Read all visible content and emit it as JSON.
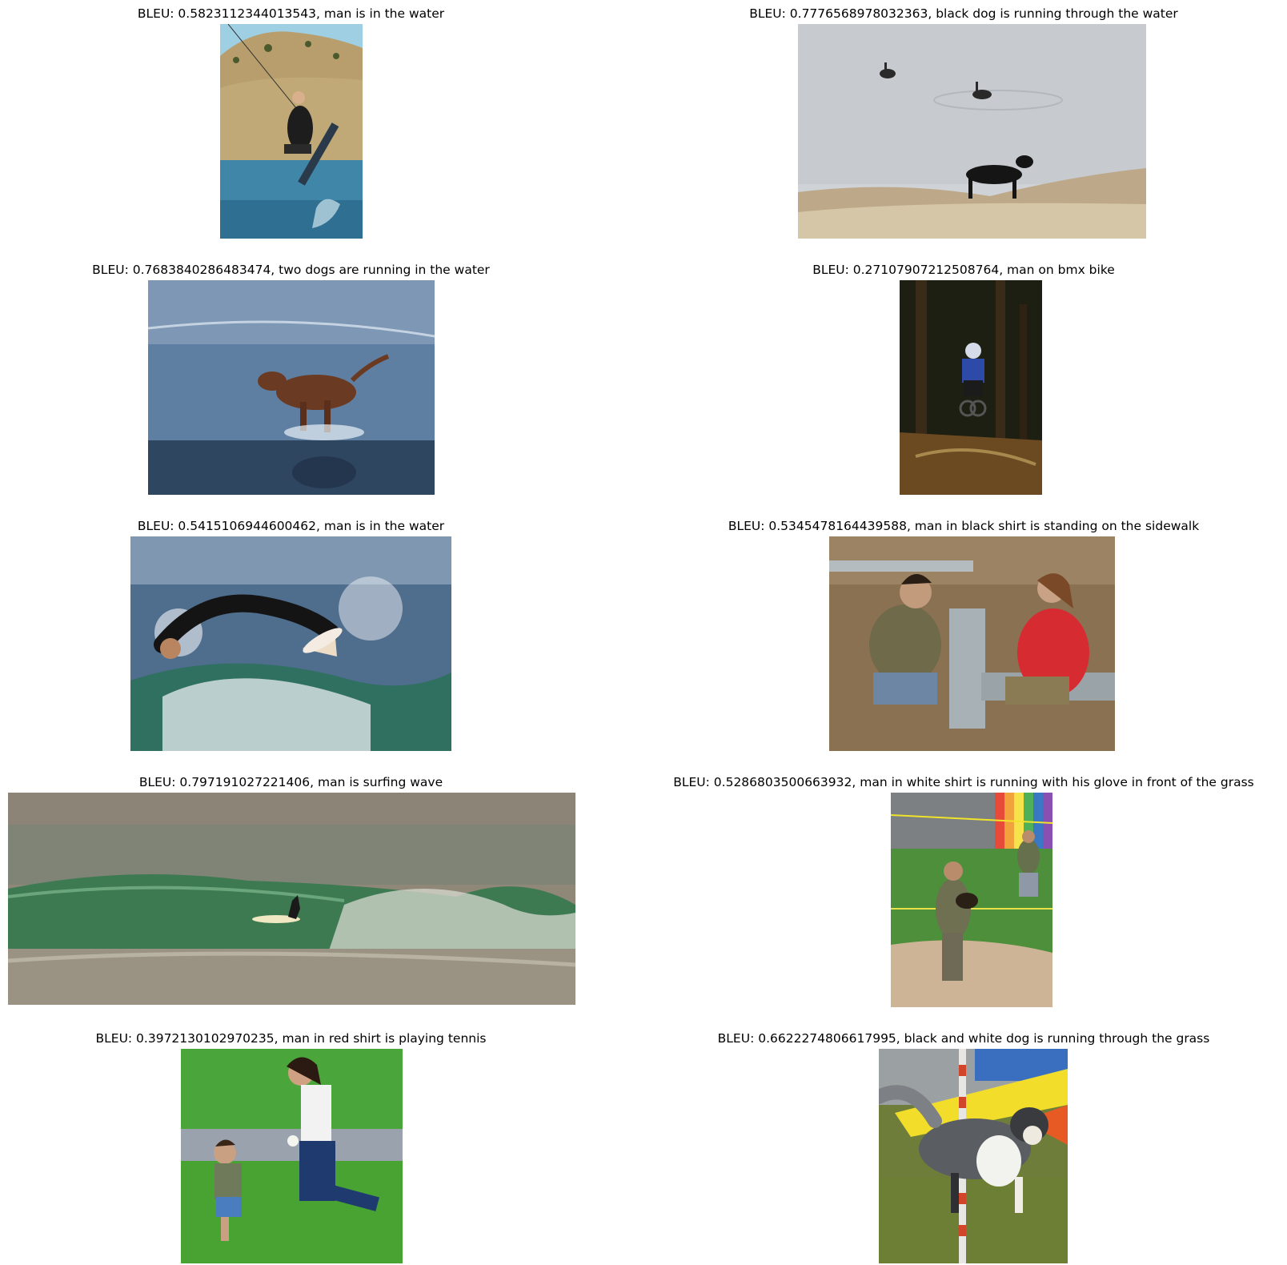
{
  "figure": {
    "panels": [
      {
        "title": "BLEU: 0.5823112344013543, man is in the water",
        "scene": "wakeboarder-jump"
      },
      {
        "title": "BLEU: 0.7776568978032363, black dog is running through the water",
        "scene": "black-dog-geese-lake"
      },
      {
        "title": "BLEU: 0.7683840286483474, two dogs are running in the water",
        "scene": "brown-dog-splashing"
      },
      {
        "title": "BLEU: 0.27107907212508764, man on bmx bike",
        "scene": "dirt-bike-forest"
      },
      {
        "title": "BLEU: 0.5415106944600462, man is in the water",
        "scene": "surfer-spray"
      },
      {
        "title": "BLEU: 0.5345478164439588, man in black shirt is standing on the sidewalk",
        "scene": "two-people-metal-frame"
      },
      {
        "title": "BLEU: 0.797191027221406, man is surfing wave",
        "scene": "surfer-green-wave"
      },
      {
        "title": "BLEU: 0.5286803500663932, man in white shirt is running with his glove in front of the grass",
        "scene": "baseball-field-walk"
      },
      {
        "title": "BLEU: 0.3972130102970235, man in red shirt is playing tennis",
        "scene": "mother-child-running-grass"
      },
      {
        "title": "BLEU: 0.6622274806617995, black and white dog is running through the grass",
        "scene": "collie-agility-pole"
      }
    ]
  }
}
